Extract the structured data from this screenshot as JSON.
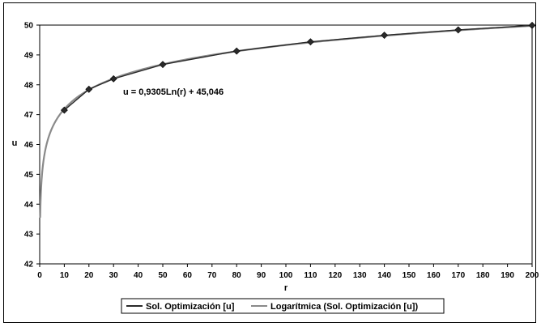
{
  "chart_data": {
    "type": "line",
    "title": "",
    "xlabel": "r",
    "ylabel": "u",
    "xlim": [
      0,
      200
    ],
    "ylim": [
      42,
      50
    ],
    "x_ticks": [
      0,
      10,
      20,
      30,
      40,
      50,
      60,
      70,
      80,
      90,
      100,
      110,
      120,
      130,
      140,
      150,
      160,
      170,
      180,
      190,
      200
    ],
    "y_ticks": [
      42,
      43,
      44,
      45,
      46,
      47,
      48,
      49,
      50
    ],
    "grid": false,
    "legend_position": "bottom",
    "series": [
      {
        "name": "Sol. Optimización [u]",
        "marker": "diamond",
        "color": "#333333",
        "x": [
          10,
          20,
          30,
          50,
          80,
          110,
          140,
          170,
          200
        ],
        "y": [
          47.15,
          47.85,
          48.2,
          48.68,
          49.13,
          49.44,
          49.66,
          49.84,
          49.99
        ]
      },
      {
        "name": "Logarítmica (Sol. Optimización [u])",
        "type": "trendline",
        "equation_form": "logarithmic",
        "a": 0.9305,
        "b": 45.046,
        "color": "#888888"
      }
    ],
    "annotations": [
      {
        "text": "u = 0,9305Ln(r) + 45,046"
      }
    ]
  }
}
